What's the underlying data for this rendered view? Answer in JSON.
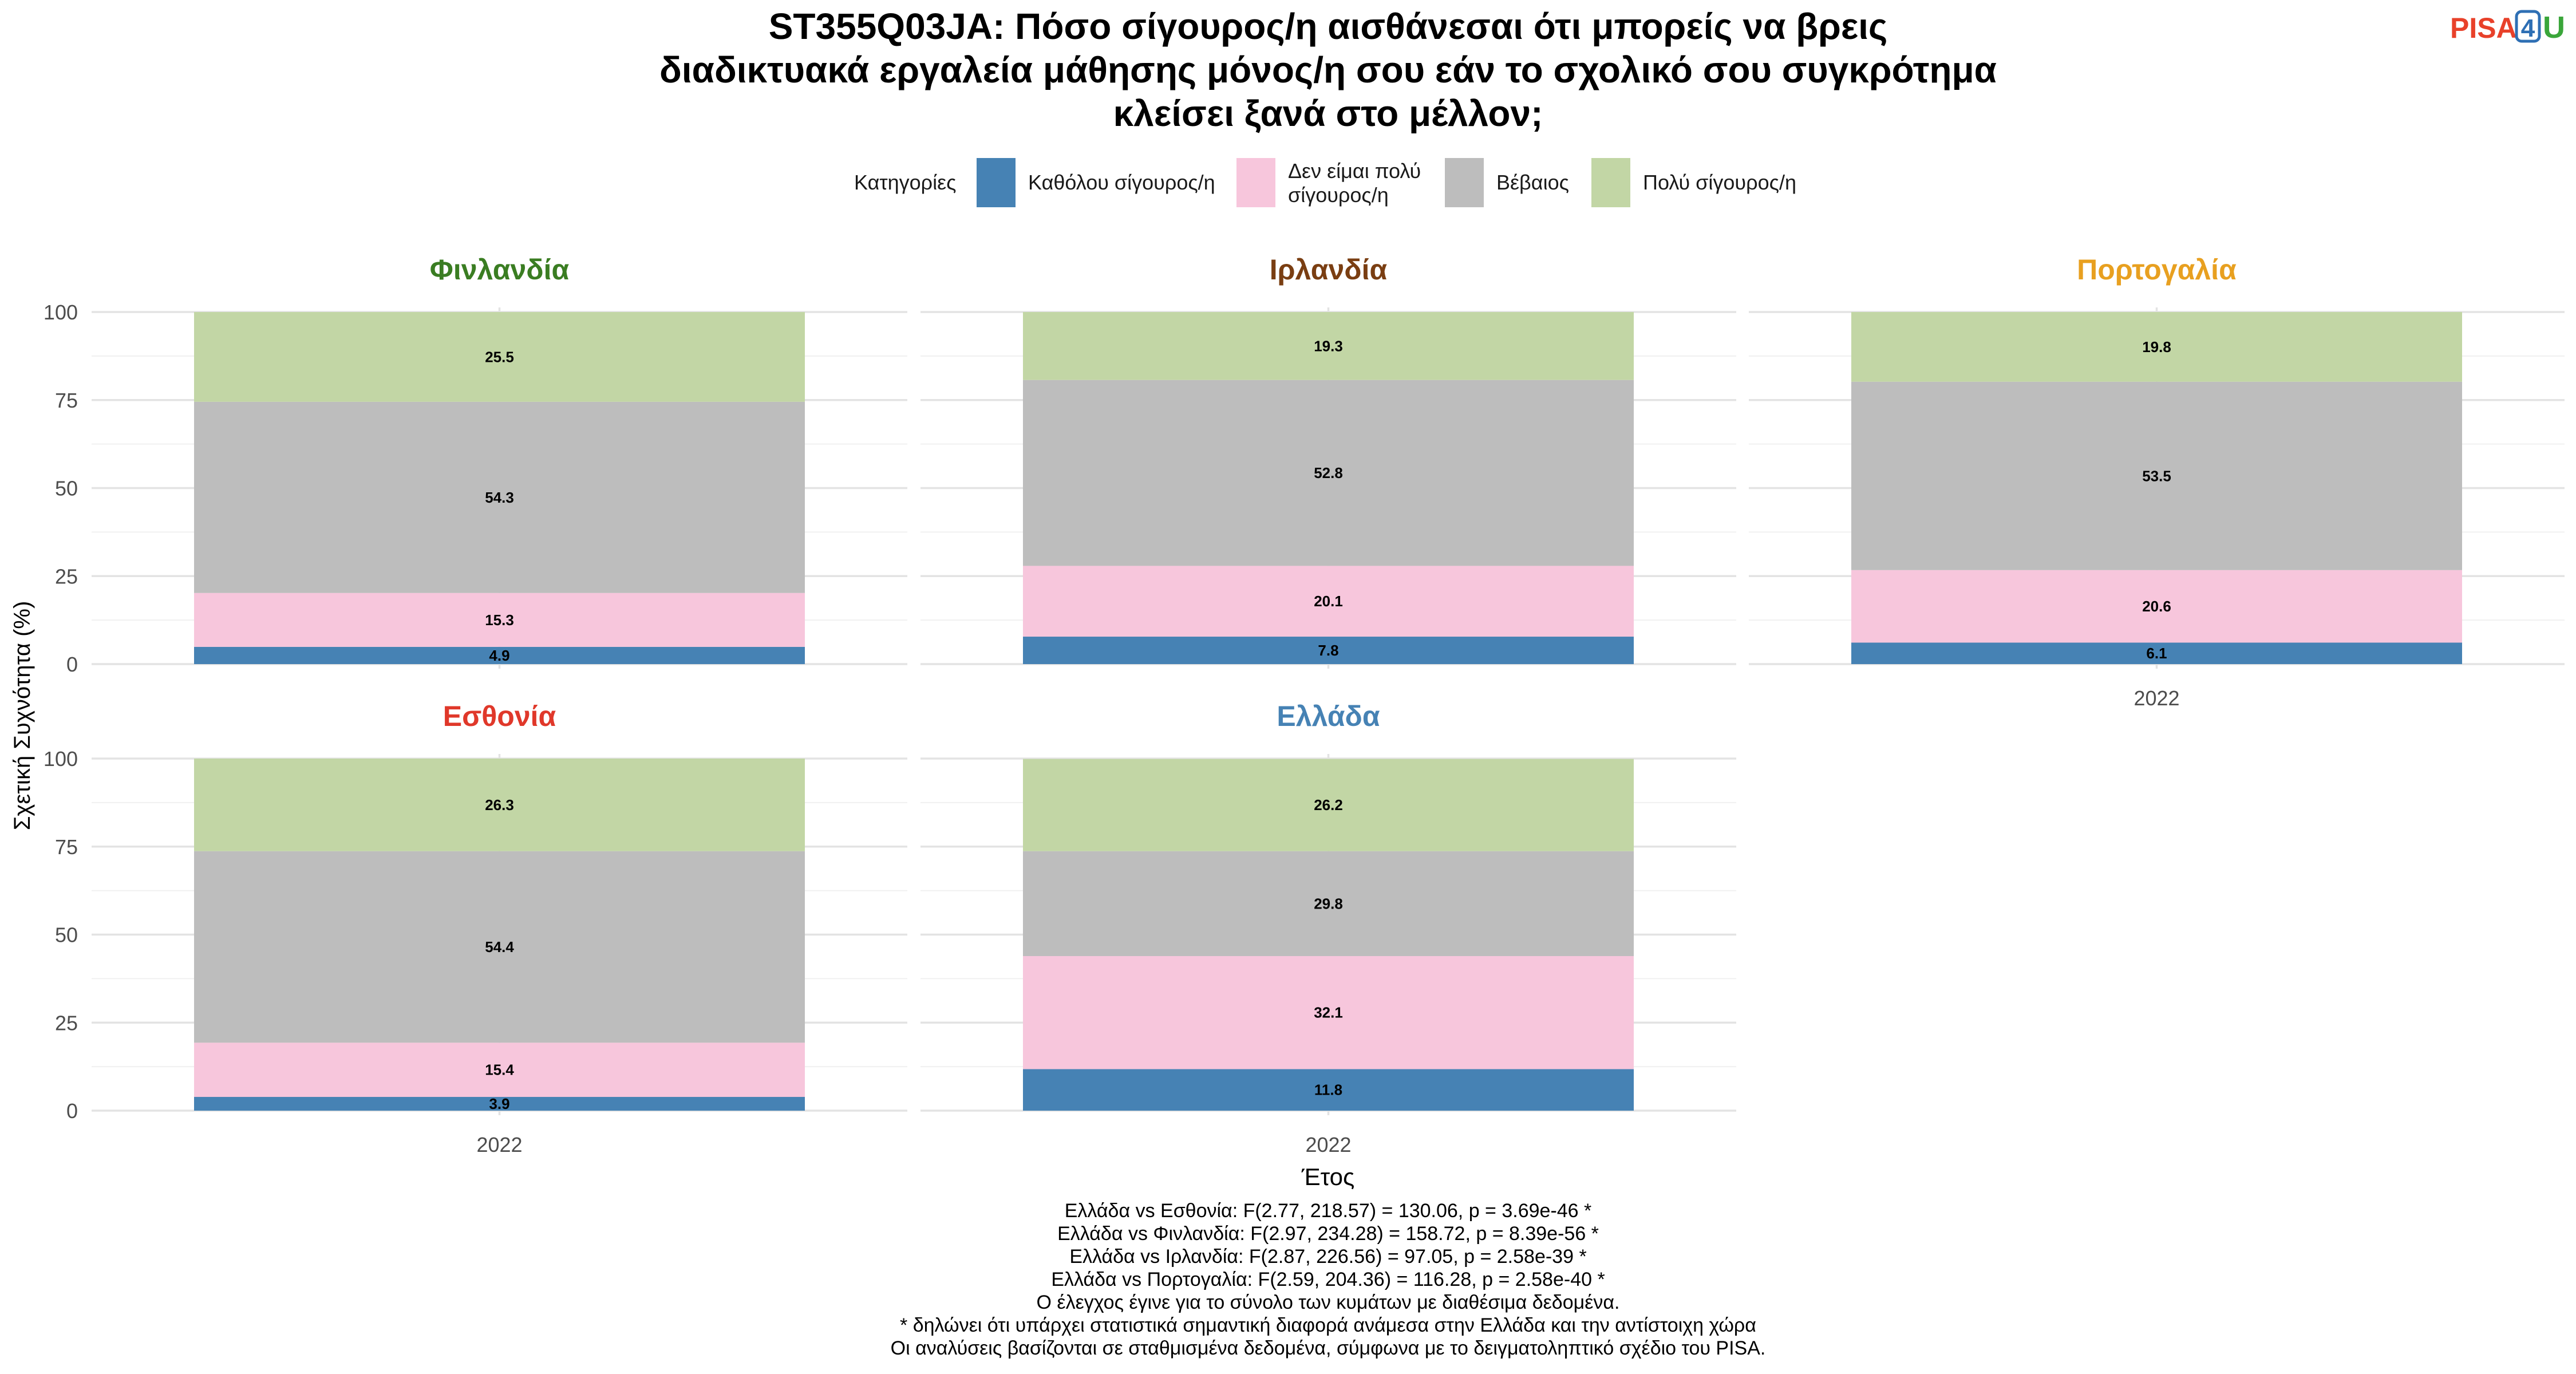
{
  "chart_data": {
    "type": "bar",
    "stacked": true,
    "title_lines": [
      "ST355Q03JA: Πόσο σίγουρος/η αισθάνεσαι ότι μπορείς να βρεις",
      "διαδικτυακά εργαλεία μάθησης μόνος/η σου εάν το σχολικό σου συγκρότημα",
      "κλείσει ξανά στο μέλλον;"
    ],
    "logo": {
      "pisa": "PISA",
      "four": "4",
      "u": "U",
      "pisa_color": "#e8412a",
      "four_color": "#2e6fb4",
      "u_color": "#3aa63a"
    },
    "legend": {
      "title": "Κατηγορίες",
      "placement": "top",
      "items": [
        {
          "lines": [
            "Καθόλου σίγουρος/η"
          ],
          "color": "#4682b4"
        },
        {
          "lines": [
            "Δεν είμαι πολύ",
            "σίγουρος/η"
          ],
          "color": "#f7c6dc"
        },
        {
          "lines": [
            "Βέβαιος"
          ],
          "color": "#bdbdbd"
        },
        {
          "lines": [
            "Πολύ σίγουρος/η"
          ],
          "color": "#c2d6a5"
        }
      ]
    },
    "ylabel": "Σχετική Συχνότητα (%)",
    "xlabel": "Έτος",
    "ylim": [
      0,
      100
    ],
    "yticks": [
      0,
      25,
      50,
      75,
      100
    ],
    "grid": true,
    "panels": [
      {
        "country": "Φινλανδία",
        "color": "#3a7d22",
        "x": "2022",
        "show_x_tick": false,
        "values": [
          4.9,
          15.3,
          54.3,
          25.5
        ]
      },
      {
        "country": "Ιρλανδία",
        "color": "#7a3e12",
        "x": "2022",
        "show_x_tick": false,
        "values": [
          7.8,
          20.1,
          52.8,
          19.3
        ]
      },
      {
        "country": "Πορτογαλία",
        "color": "#e8a020",
        "x": "2022",
        "show_x_tick": true,
        "values": [
          6.1,
          20.6,
          53.5,
          19.8
        ]
      },
      {
        "country": "Εσθονία",
        "color": "#e0382a",
        "x": "2022",
        "show_x_tick": true,
        "values": [
          3.9,
          15.4,
          54.4,
          26.3
        ]
      },
      {
        "country": "Ελλάδα",
        "color": "#4682b4",
        "x": "2022",
        "show_x_tick": true,
        "values": [
          11.8,
          32.1,
          29.8,
          26.2
        ]
      }
    ],
    "footnotes": [
      "Ελλάδα vs Εσθονία: F(2.77, 218.57) = 130.06, p = 3.69e-46 *",
      "Ελλάδα vs Φινλανδία: F(2.97, 234.28) = 158.72, p = 8.39e-56 *",
      "Ελλάδα vs Ιρλανδία: F(2.87, 226.56) = 97.05, p = 2.58e-39 *",
      "Ελλάδα vs Πορτογαλία: F(2.59, 204.36) = 116.28, p = 2.58e-40 *",
      "Ο έλεγχος έγινε για το σύνολο των κυμάτων με διαθέσιμα δεδομένα.",
      "* δηλώνει ότι υπάρχει στατιστικά σημαντική διαφορά ανάμεσα στην Ελλάδα και την αντίστοιχη χώρα",
      "Οι αναλύσεις βασίζονται σε σταθμισμένα δεδομένα, σύμφωνα με το δειγματοληπτικό σχέδιο του PISA."
    ]
  }
}
